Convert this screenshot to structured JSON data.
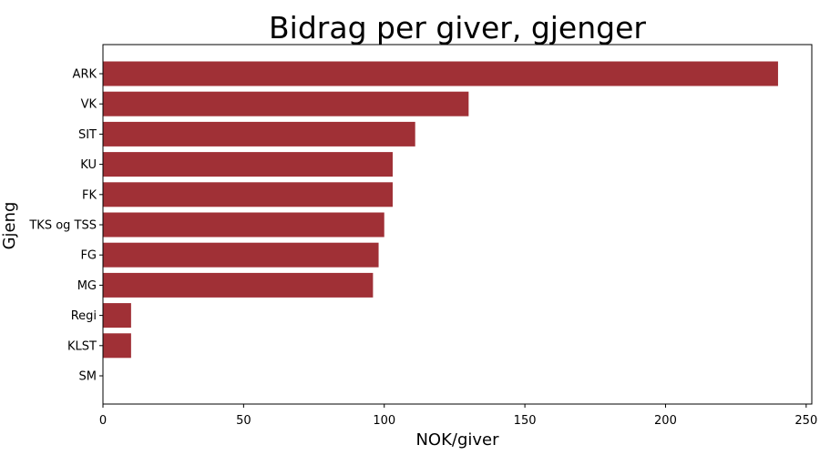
{
  "chart_data": {
    "type": "bar",
    "orientation": "horizontal",
    "title": "Bidrag per giver, gjenger",
    "xlabel": "NOK/giver",
    "ylabel": "Gjeng",
    "categories": [
      "ARK",
      "VK",
      "SIT",
      "KU",
      "FK",
      "TKS og TSS",
      "FG",
      "MG",
      "Regi",
      "KLST",
      "SM"
    ],
    "values": [
      240,
      130,
      111,
      103,
      103,
      100,
      98,
      96,
      10,
      10,
      0
    ],
    "xlim": [
      0,
      252
    ],
    "xticks": [
      0,
      50,
      100,
      150,
      200,
      250
    ],
    "grid": false,
    "bar_color": "#a03036"
  }
}
